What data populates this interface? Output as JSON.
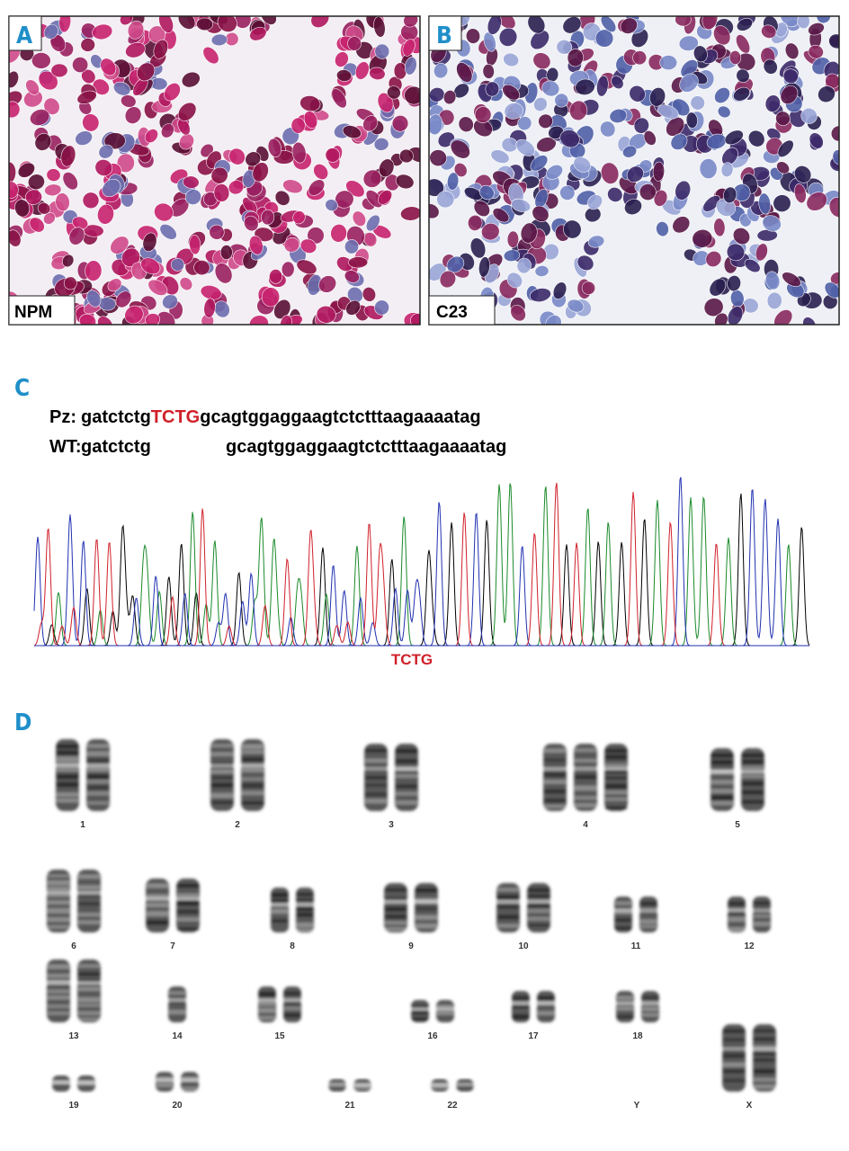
{
  "panels": [
    {
      "label": "A",
      "stain": "NPM"
    },
    {
      "label": "B",
      "stain": "C23"
    }
  ],
  "sequence": {
    "label": "C",
    "rows": [
      {
        "name": "Pz:",
        "prefix": "gatctctg",
        "insert": "TCTG",
        "suffix": "gcagtggaggaagtctctttaagaaaatag"
      },
      {
        "name": "WT:",
        "prefix": "gatctctg",
        "suffix": "gcagtggaggaagtctctttaagaaaatag"
      }
    ],
    "trace_label": "TCTG"
  },
  "karyotype": {
    "label": "D",
    "chromosomes": [
      "1",
      "2",
      "3",
      "4",
      "5",
      "6",
      "7",
      "8",
      "9",
      "10",
      "11",
      "12",
      "13",
      "14",
      "15",
      "16",
      "17",
      "18",
      "19",
      "20",
      "21",
      "22",
      "Y",
      "X"
    ]
  }
}
